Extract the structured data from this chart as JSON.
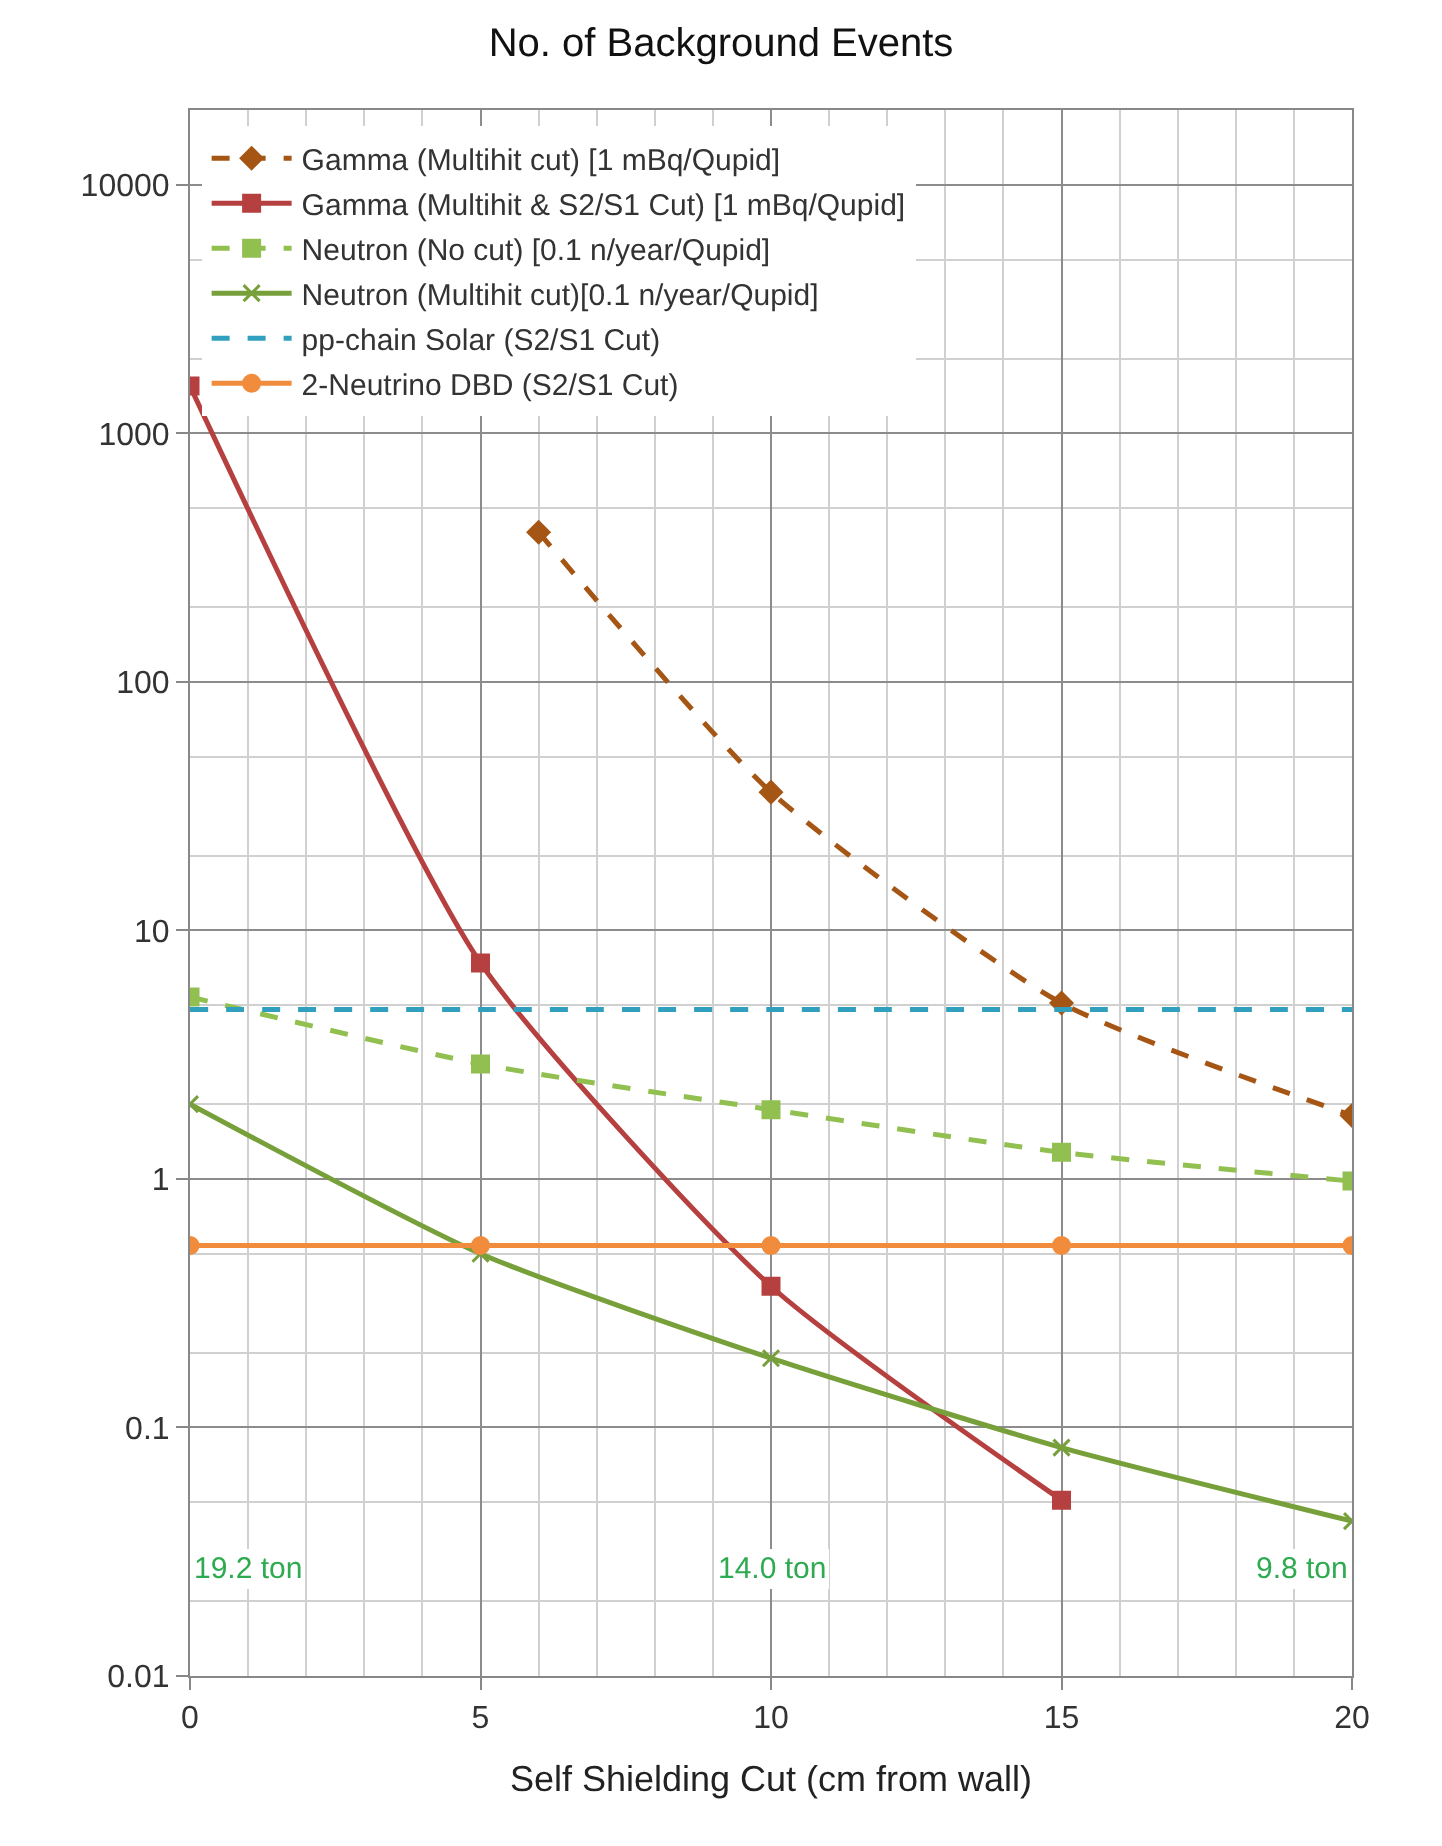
{
  "chart_data": {
    "type": "line",
    "title": "No. of Background Events",
    "xlabel": "Self Shielding Cut (cm from wall)",
    "x": [
      0,
      5,
      10,
      15,
      20
    ],
    "xlim": [
      0,
      20
    ],
    "xticks": [
      0,
      5,
      10,
      15,
      20
    ],
    "log": true,
    "ylim": [
      0.01,
      20000
    ],
    "yticks": [
      0.01,
      0.1,
      1,
      10,
      100,
      1000,
      10000
    ],
    "grid": true,
    "legend": "top left",
    "series": [
      {
        "name": "Gamma (Multihit cut) [1 mBq/Qupid]",
        "color": "#a65614",
        "x": [
          6,
          10,
          15,
          20
        ],
        "values": [
          400,
          36,
          5.1,
          1.8
        ],
        "marker": "diamond",
        "line_style": "dashed"
      },
      {
        "name": "Gamma (Multihit & S2/S1 Cut) [1 mBq/Qupid]",
        "color": "#b5403f",
        "values": [
          1550,
          7.4,
          0.37,
          0.051,
          null
        ],
        "marker": "square",
        "line_style": "solid"
      },
      {
        "name": "Neutron (No cut) [0.1 n/year/Qupid]",
        "color": "#92c050",
        "values": [
          5.4,
          2.9,
          1.9,
          1.28,
          0.98
        ],
        "marker": "square",
        "line_style": "dashed"
      },
      {
        "name": "Neutron (Multihit cut)[0.1 n/year/Qupid]",
        "color": "#77a03a",
        "values": [
          2.0,
          0.5,
          0.19,
          0.083,
          0.042
        ],
        "marker": "cross",
        "line_style": "solid"
      },
      {
        "name": "pp-chain Solar (S2/S1 Cut)",
        "color": "#31a0be",
        "values": [
          4.8,
          4.8,
          4.8,
          4.8,
          4.8
        ],
        "marker": "none",
        "line_style": "dashed"
      },
      {
        "name": "2-Neutrino DBD (S2/S1 Cut)",
        "color": "#f08c3c",
        "values": [
          0.54,
          0.54,
          0.54,
          0.54,
          0.54
        ],
        "marker": "circle",
        "line_style": "solid"
      }
    ],
    "annotations": [
      "19.2 ton",
      "14.0 ton",
      "9.8 ton"
    ]
  }
}
